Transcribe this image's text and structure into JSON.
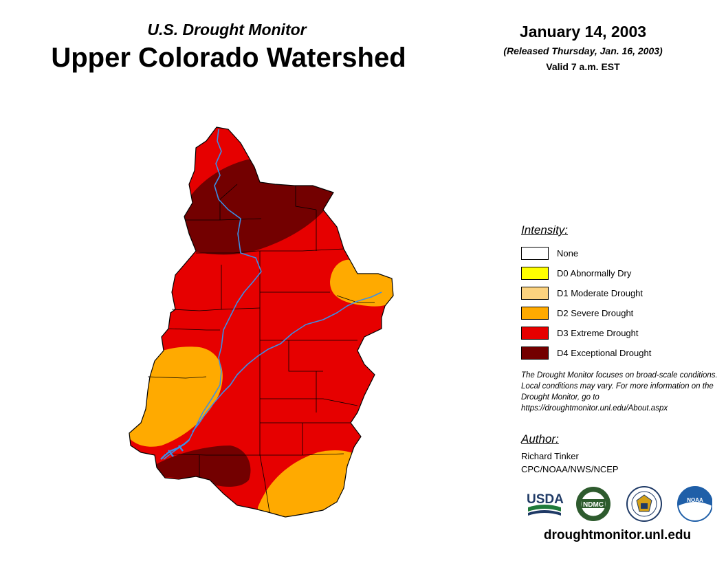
{
  "header": {
    "monitor_title": "U.S. Drought Monitor",
    "region_title": "Upper Colorado Watershed",
    "date": "January 14, 2003",
    "released": "(Released Thursday, Jan. 16, 2003)",
    "valid": "Valid 7 a.m. EST"
  },
  "legend": {
    "heading": "Intensity:",
    "items": [
      {
        "label": "None",
        "color": "#ffffff"
      },
      {
        "label": "D0 Abnormally Dry",
        "color": "#ffff00"
      },
      {
        "label": "D1 Moderate Drought",
        "color": "#fcd37f"
      },
      {
        "label": "D2 Severe Drought",
        "color": "#ffaa00"
      },
      {
        "label": "D3 Extreme Drought",
        "color": "#e60000"
      },
      {
        "label": "D4 Exceptional Drought",
        "color": "#730000"
      }
    ]
  },
  "note": "The Drought Monitor focuses on broad-scale conditions. Local conditions may vary. For more information on the Drought Monitor, go to https://droughtmonitor.unl.edu/About.aspx",
  "author": {
    "heading": "Author:",
    "name": "Richard Tinker",
    "org": "CPC/NOAA/NWS/NCEP"
  },
  "logos": {
    "usda": "USDA",
    "ndmc": "NDMC",
    "noaa": "NOAA"
  },
  "site_url": "droughtmonitor.unl.edu",
  "map_colors": {
    "river": "#3a8fe8",
    "border": "#000000"
  }
}
